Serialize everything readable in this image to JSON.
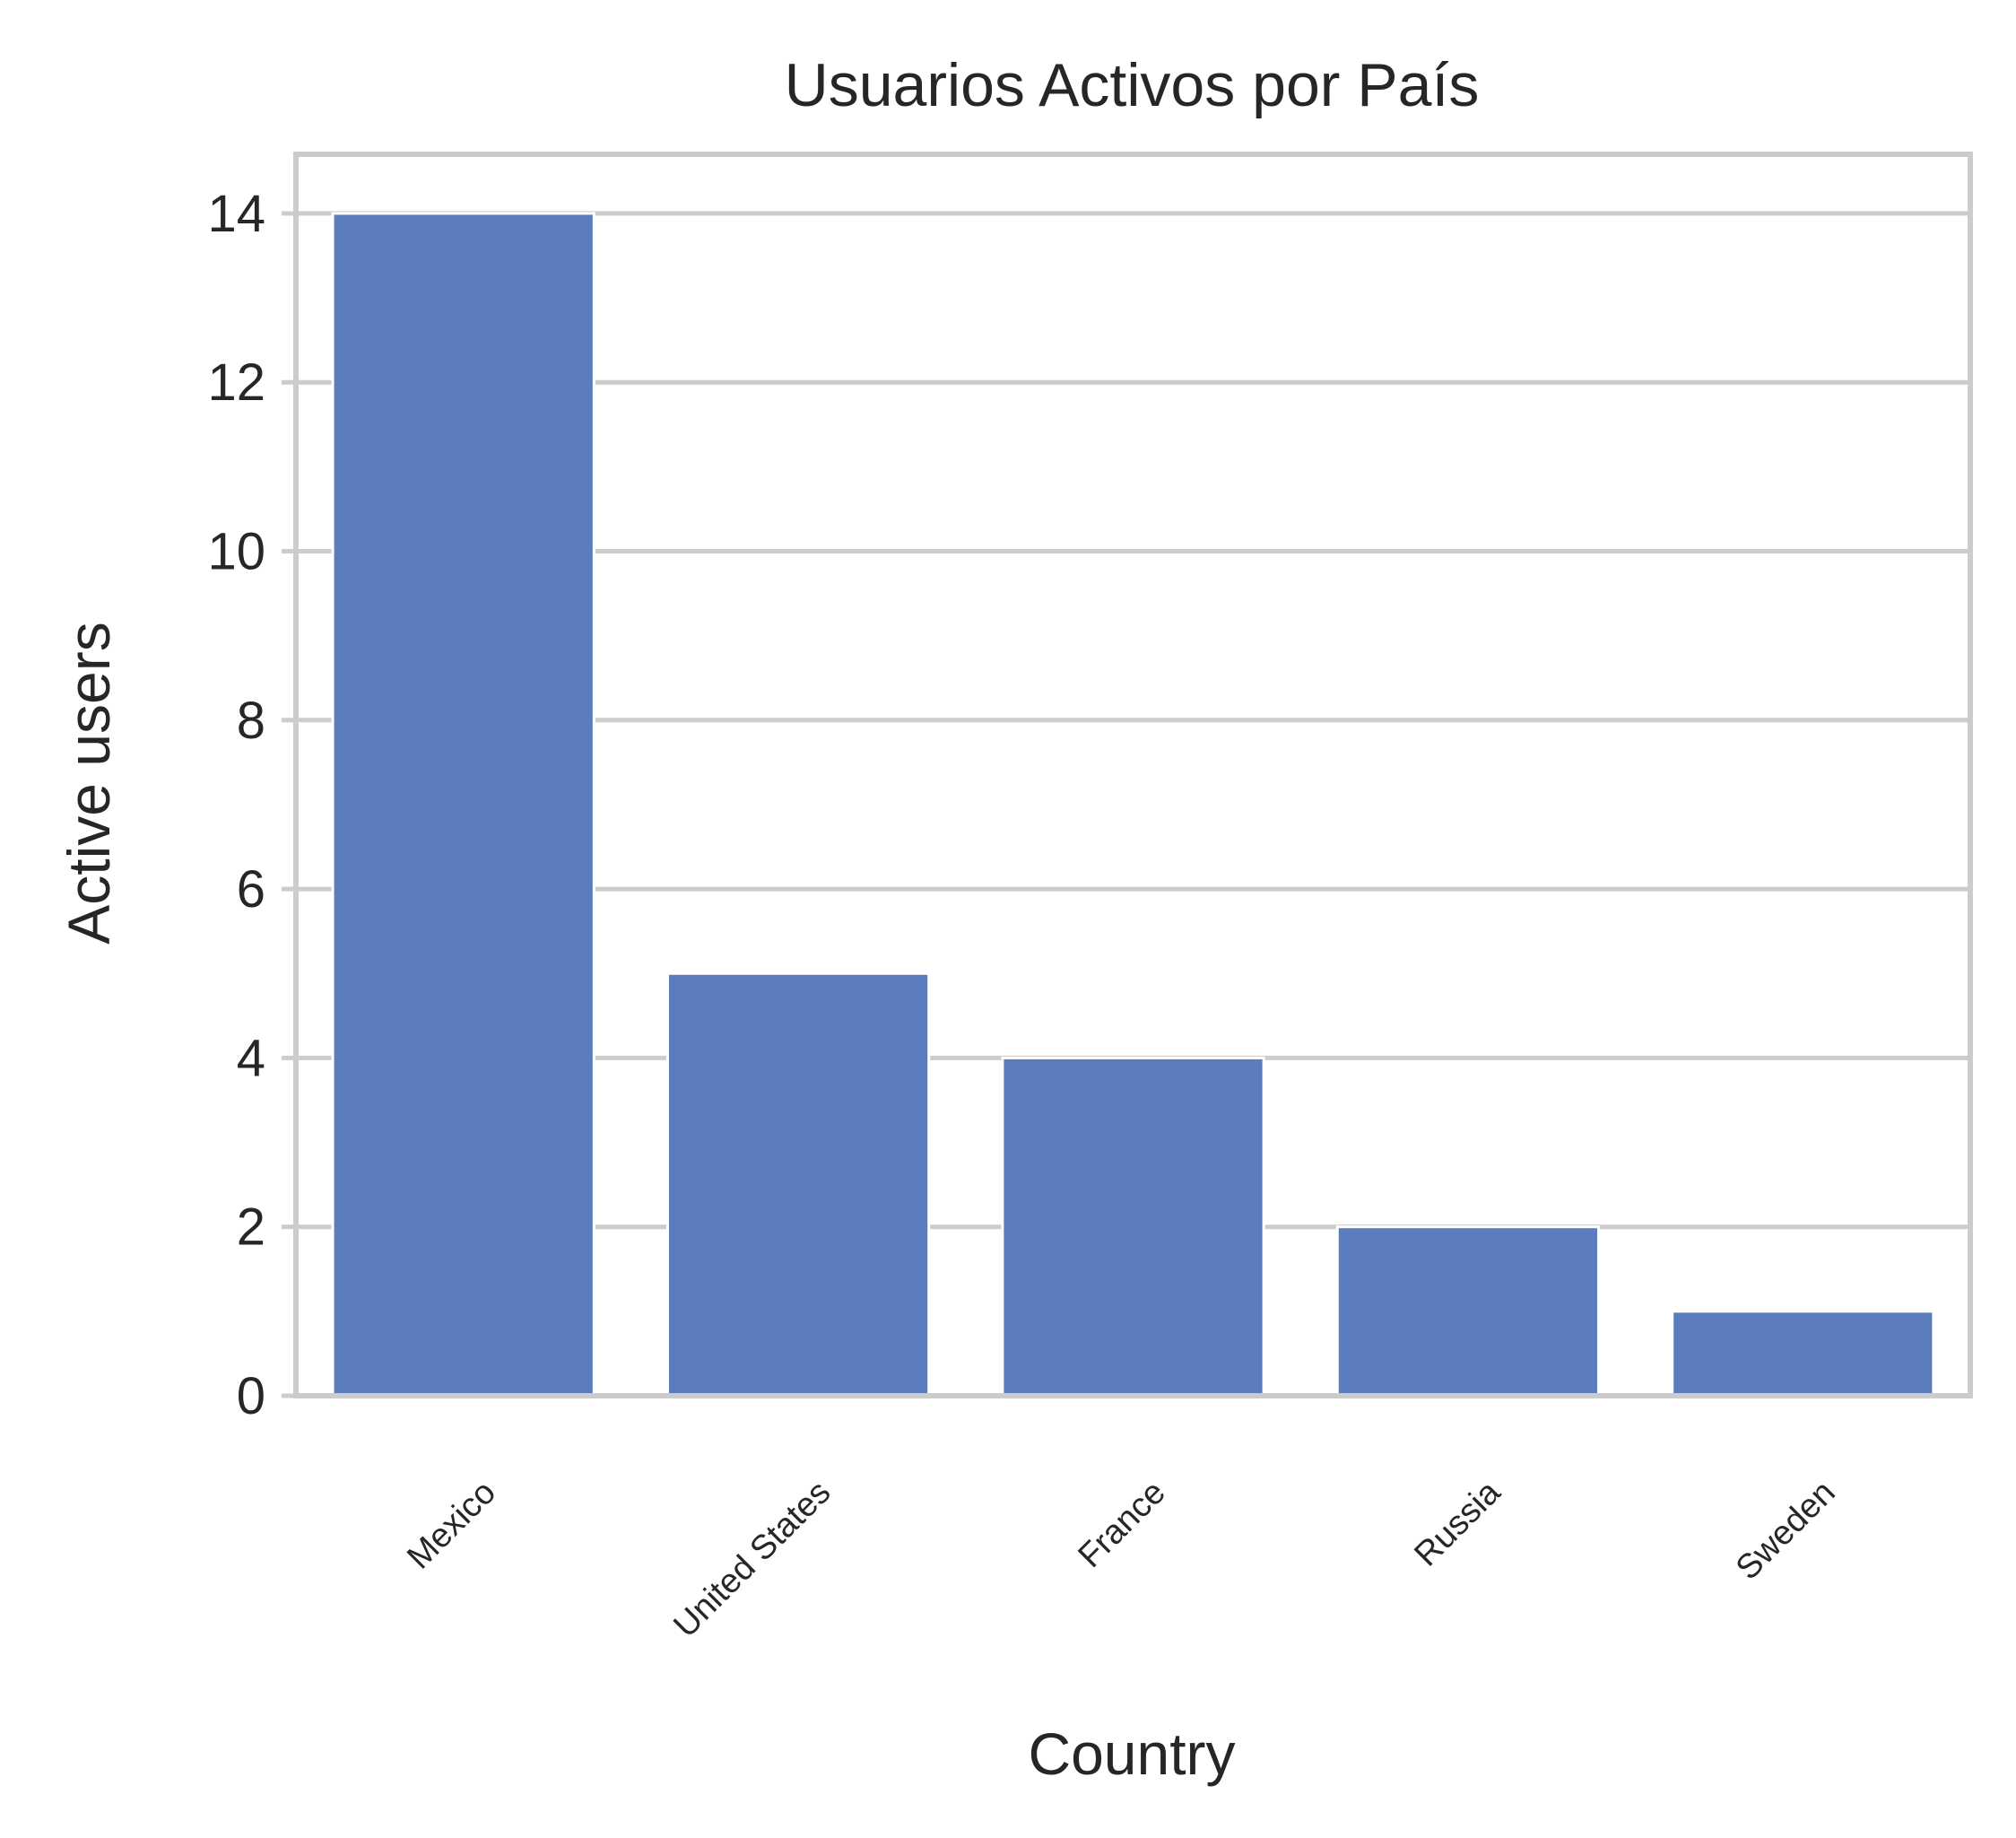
{
  "chart_data": {
    "type": "bar",
    "title": "Usuarios Activos por País",
    "xlabel": "Country",
    "ylabel": "Active users",
    "categories": [
      "Mexico",
      "United States",
      "France",
      "Russia",
      "Sweden"
    ],
    "values": [
      14,
      5,
      4,
      2,
      1
    ],
    "ylim": [
      0,
      14.7
    ],
    "yticks": [
      "0",
      "2",
      "4",
      "6",
      "8",
      "10",
      "12",
      "14"
    ],
    "grid": "horizontal",
    "bar_color": "#5b7dbe",
    "grid_color": "#cccccc",
    "text_color": "#262626"
  }
}
